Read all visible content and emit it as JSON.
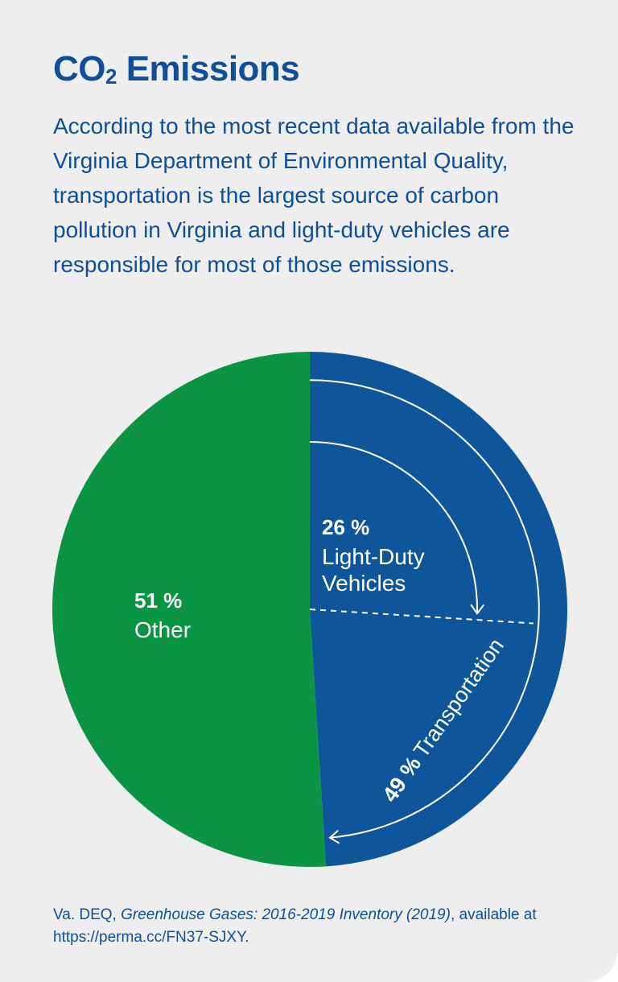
{
  "header": {
    "title_main": "CO",
    "title_sub": "2",
    "title_rest": " Emissions"
  },
  "intro_text": "According to the most recent data available from the Virginia Department of Environmental Quality, transportation is the largest source of carbon pollution in Virginia and light-duty vehicles are responsible for most of those emissions.",
  "chart_data": {
    "type": "pie",
    "slices": [
      {
        "label": "Other",
        "value": 51,
        "value_text": "51 %",
        "color": "#0a9444"
      },
      {
        "label": "Transportation",
        "value": 49,
        "value_text": "49 %",
        "color": "#0e5699"
      }
    ],
    "sub_slice": {
      "parent": "Transportation",
      "label": "Light-Duty Vehicles",
      "label_line1": "Light-Duty",
      "label_line2": "Vehicles",
      "value": 26,
      "value_text": "26 %"
    },
    "colors": {
      "arrow": "#ffffff",
      "label_text": "#ffffff"
    }
  },
  "source": {
    "prefix": "Va. DEQ, ",
    "title": "Greenhouse Gases: 2016-2019 Inventory (2019)",
    "suffix": ", available at https://perma.cc/FN37-SJXY."
  }
}
